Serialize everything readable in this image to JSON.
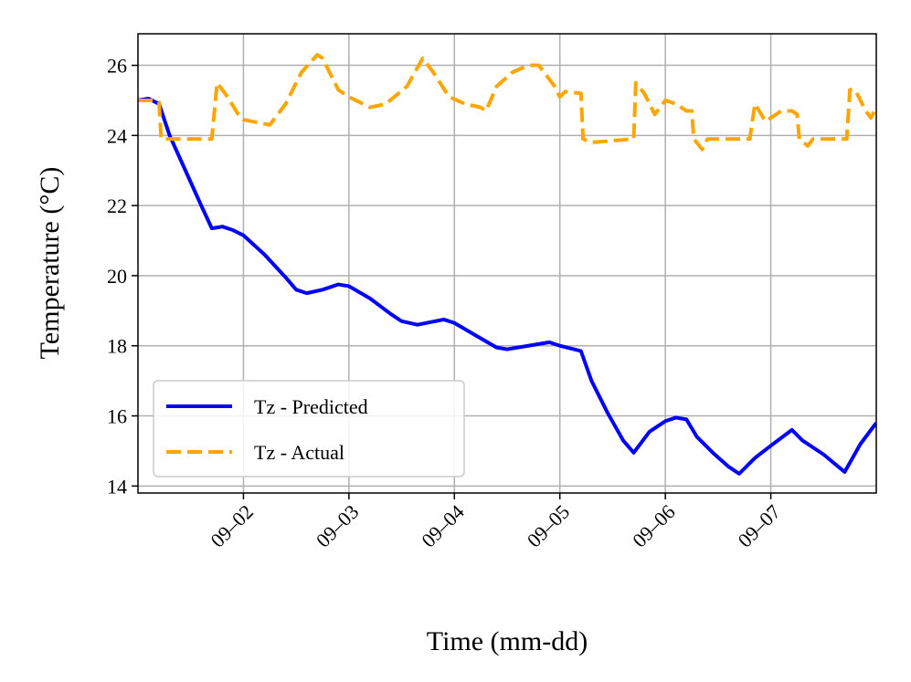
{
  "chart_data": {
    "type": "line",
    "xlabel": "Time (mm-dd)",
    "ylabel": "Temperature (°C)",
    "xlim": [
      1,
      8
    ],
    "ylim": [
      13.8,
      26.9
    ],
    "xticks": [
      {
        "value": 2,
        "label": "09–02"
      },
      {
        "value": 3,
        "label": "09–03"
      },
      {
        "value": 4,
        "label": "09–04"
      },
      {
        "value": 5,
        "label": "09–05"
      },
      {
        "value": 6,
        "label": "09–06"
      },
      {
        "value": 7,
        "label": "09–07"
      }
    ],
    "yticks": [
      14,
      16,
      18,
      20,
      22,
      24,
      26
    ],
    "grid": true,
    "legend": "lower left",
    "series": [
      {
        "name": "Tz - Predicted",
        "color": "#0000ff",
        "dash": "solid",
        "x": [
          1.0,
          1.1,
          1.2,
          1.3,
          1.45,
          1.6,
          1.7,
          1.8,
          1.9,
          2.0,
          2.2,
          2.4,
          2.5,
          2.6,
          2.75,
          2.9,
          3.0,
          3.2,
          3.4,
          3.5,
          3.65,
          3.9,
          4.0,
          4.2,
          4.4,
          4.5,
          4.7,
          4.9,
          5.0,
          5.2,
          5.3,
          5.45,
          5.6,
          5.7,
          5.85,
          6.0,
          6.1,
          6.2,
          6.3,
          6.45,
          6.6,
          6.7,
          6.85,
          7.0,
          7.2,
          7.3,
          7.5,
          7.7,
          7.85,
          8.0
        ],
        "values": [
          25.0,
          25.05,
          24.9,
          24.0,
          23.0,
          22.0,
          21.35,
          21.4,
          21.3,
          21.15,
          20.6,
          19.95,
          19.6,
          19.5,
          19.6,
          19.75,
          19.7,
          19.35,
          18.9,
          18.7,
          18.6,
          18.75,
          18.65,
          18.3,
          17.95,
          17.9,
          18.0,
          18.1,
          18.0,
          17.85,
          17.0,
          16.1,
          15.3,
          14.95,
          15.55,
          15.85,
          15.95,
          15.9,
          15.4,
          14.95,
          14.55,
          14.35,
          14.8,
          15.15,
          15.6,
          15.3,
          14.9,
          14.4,
          15.2,
          15.8
        ]
      },
      {
        "name": "Tz - Actual",
        "color": "#ffa500",
        "dash": "dashed",
        "x": [
          1.0,
          1.15,
          1.2,
          1.22,
          1.7,
          1.75,
          1.85,
          1.95,
          2.0,
          2.25,
          2.4,
          2.55,
          2.7,
          2.75,
          2.9,
          3.0,
          3.2,
          3.35,
          3.55,
          3.7,
          3.8,
          3.95,
          4.1,
          4.25,
          4.3,
          4.4,
          4.55,
          4.7,
          4.8,
          4.95,
          5.0,
          5.05,
          5.2,
          5.22,
          5.3,
          5.7,
          5.72,
          5.8,
          5.9,
          6.0,
          6.1,
          6.2,
          6.25,
          6.27,
          6.35,
          6.4,
          6.8,
          6.85,
          6.95,
          7.1,
          7.2,
          7.25,
          7.27,
          7.35,
          7.4,
          7.72,
          7.75,
          7.8,
          7.9,
          7.95,
          8.0
        ],
        "values": [
          25.0,
          25.0,
          24.95,
          23.9,
          23.9,
          25.5,
          25.1,
          24.6,
          24.45,
          24.3,
          24.9,
          25.8,
          26.3,
          26.2,
          25.3,
          25.1,
          24.8,
          24.9,
          25.4,
          26.2,
          25.8,
          25.1,
          24.9,
          24.8,
          24.7,
          25.4,
          25.8,
          26.0,
          26.0,
          25.4,
          25.1,
          25.25,
          25.2,
          23.9,
          23.8,
          23.9,
          25.5,
          25.2,
          24.6,
          25.0,
          24.9,
          24.7,
          24.7,
          23.9,
          23.6,
          23.9,
          23.9,
          24.9,
          24.4,
          24.7,
          24.7,
          24.6,
          23.9,
          23.7,
          23.9,
          23.9,
          25.3,
          25.3,
          24.7,
          24.5,
          24.8
        ]
      }
    ]
  }
}
